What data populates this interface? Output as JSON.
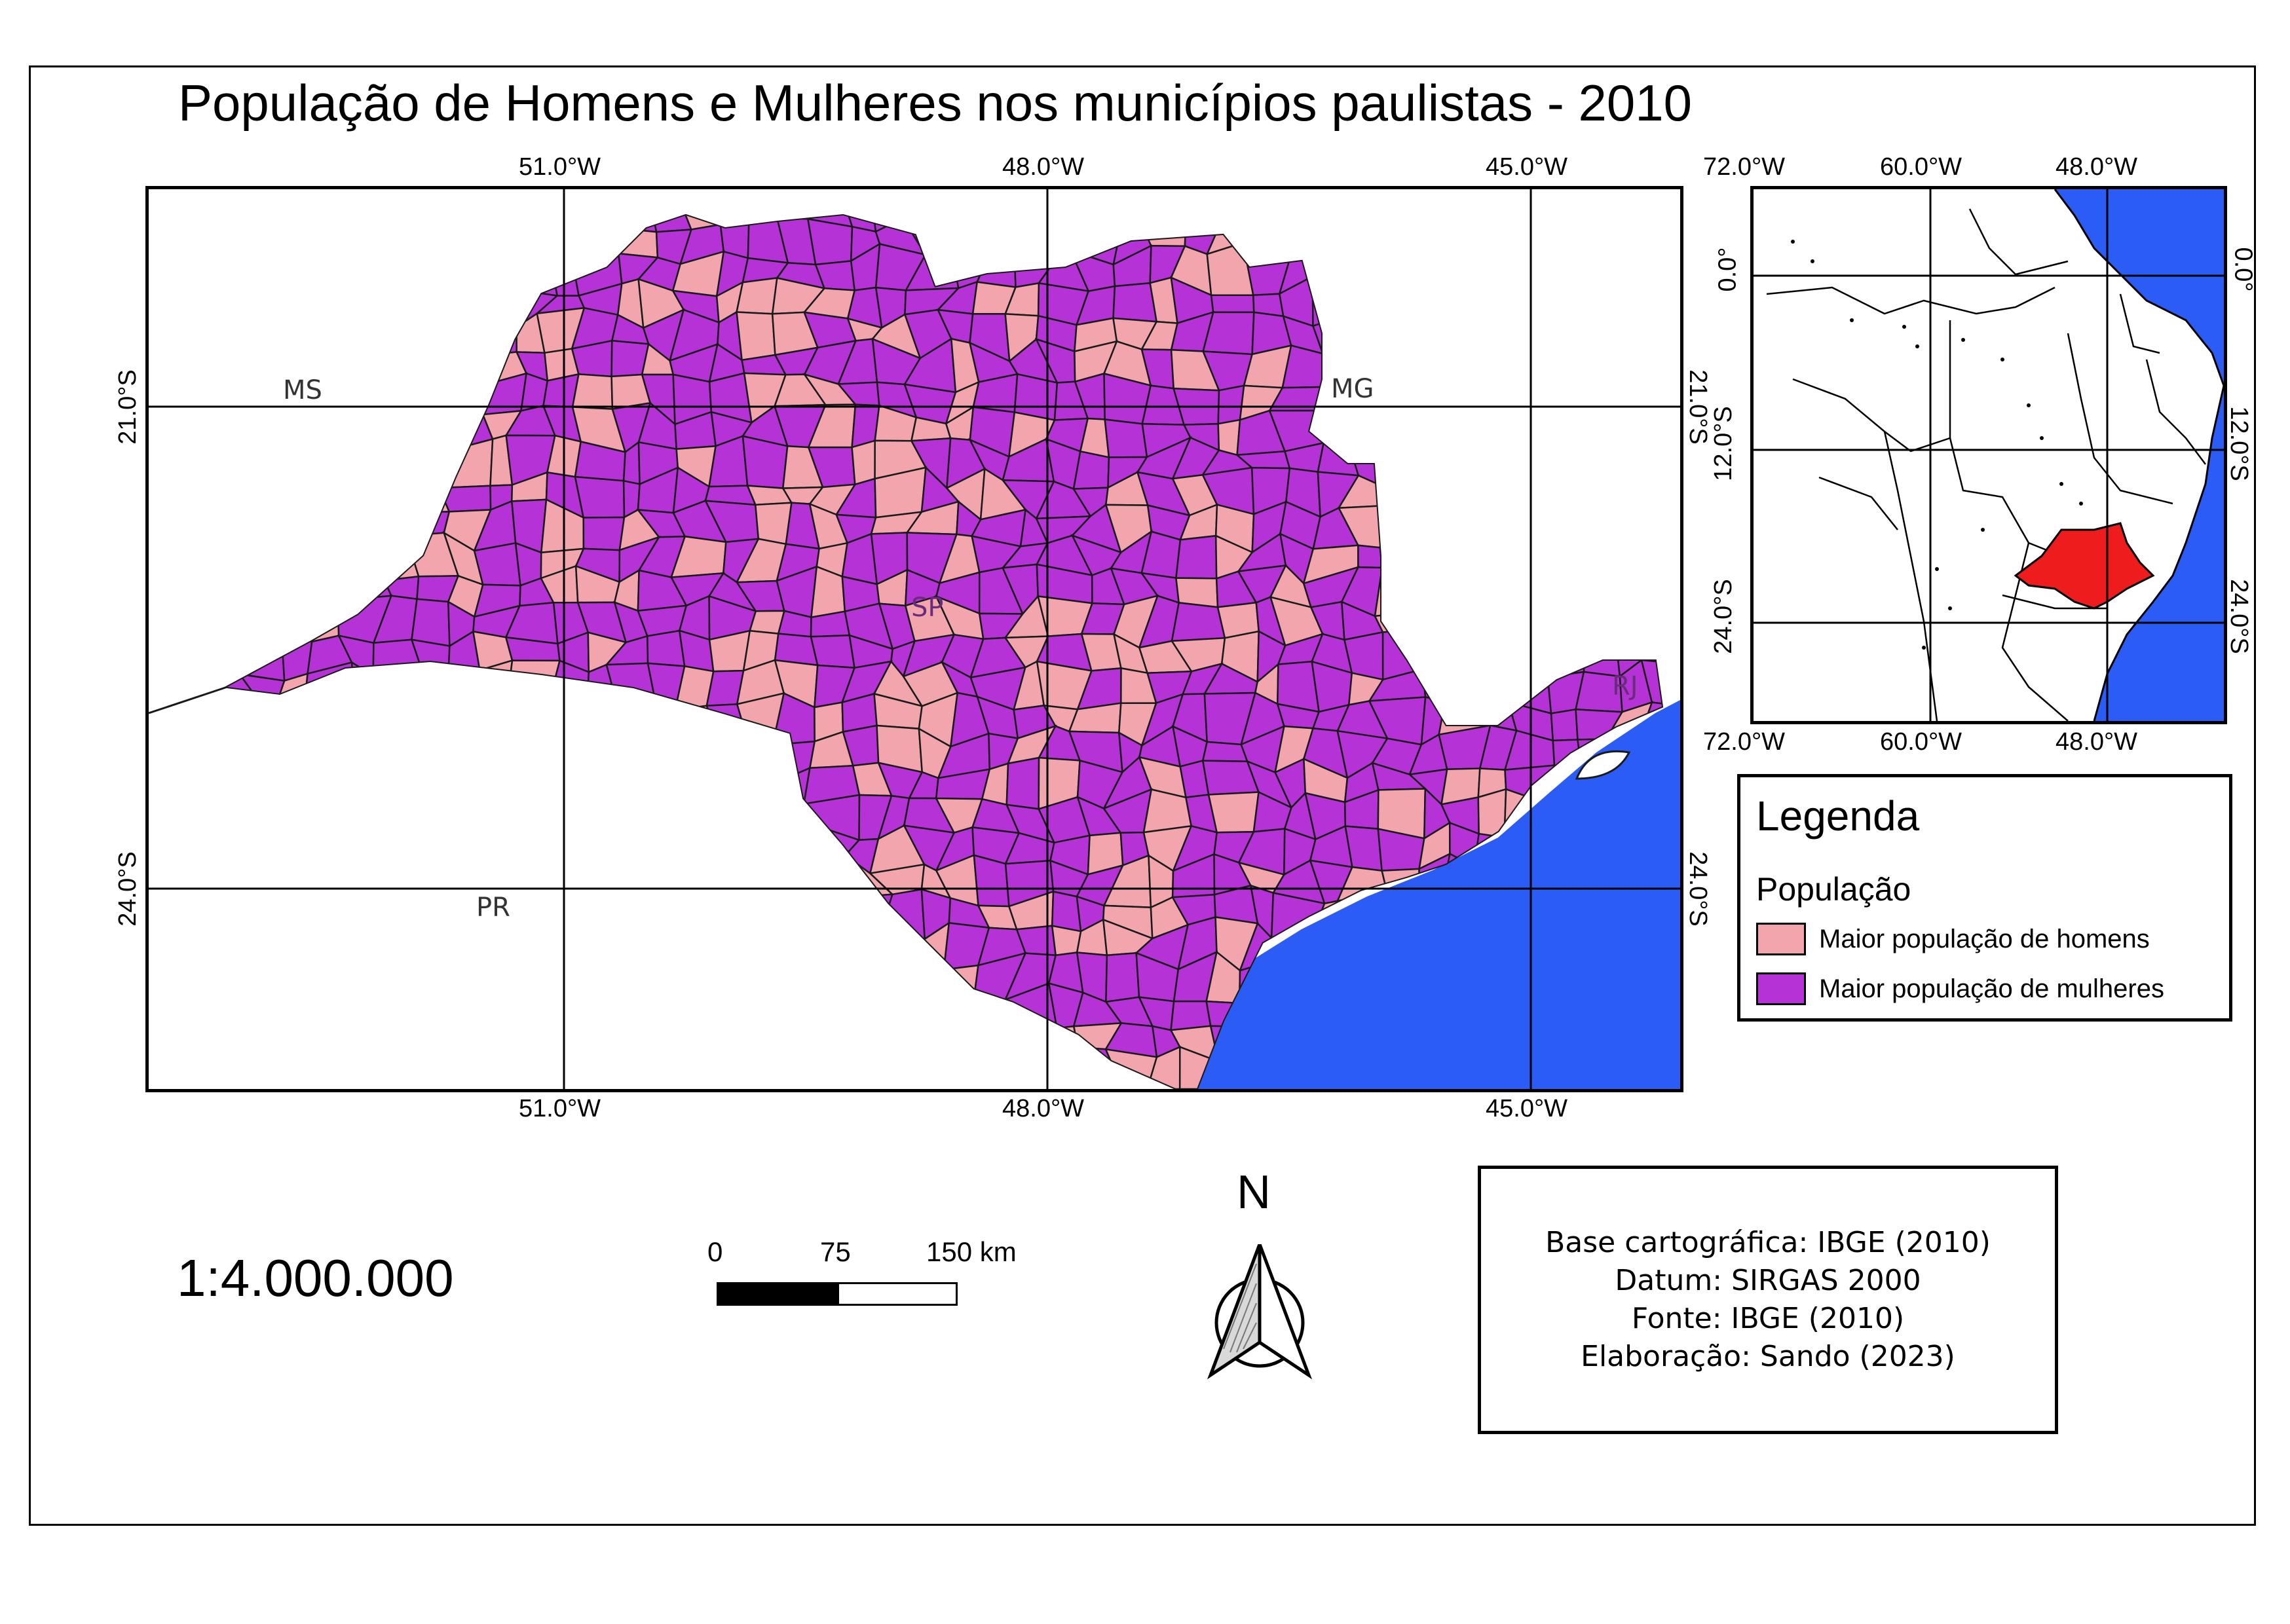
{
  "title": "População de Homens e Mulheres nos municípios paulistas - 2010",
  "colors": {
    "men_majority": "#f2a5ad",
    "women_majority": "#b533d6",
    "ocean": "#2b5cf5",
    "highlight_state": "#ee1c1c",
    "boundary": "#1a1a1a"
  },
  "main_map": {
    "top_lon_labels": [
      "51.0°W",
      "48.0°W",
      "45.0°W"
    ],
    "bottom_lon_labels": [
      "51.0°W",
      "48.0°W",
      "45.0°W"
    ],
    "left_lat_labels": [
      "21.0°S",
      "24.0°S"
    ],
    "right_lat_labels": [
      "21.0°S",
      "24.0°S"
    ],
    "state_labels": [
      "MS",
      "MG",
      "PR",
      "SP",
      "RJ"
    ]
  },
  "inset_map": {
    "top_lon_labels": [
      "72.0°W",
      "60.0°W",
      "48.0°W"
    ],
    "bottom_lon_labels": [
      "72.0°W",
      "60.0°W",
      "48.0°W"
    ],
    "left_lat_labels": [
      "0.0°",
      "12.0°S",
      "24.0°S"
    ],
    "right_lat_labels": [
      "0.0°",
      "12.0°S",
      "24.0°S"
    ]
  },
  "legend": {
    "title": "Legenda",
    "subtitle": "População",
    "items": [
      {
        "label": "Maior população de homens"
      },
      {
        "label": "Maior população de mulheres"
      }
    ]
  },
  "scale": {
    "ratio": "1:4.000.000",
    "ticks": [
      "0",
      "75",
      "150 km"
    ]
  },
  "north_arrow": {
    "letter": "N",
    "icon": "north-arrow-icon"
  },
  "credits": [
    "Base cartográfica: IBGE (2010)",
    "Datum: SIRGAS 2000",
    "Fonte: IBGE (2010)",
    "Elaboração: Sando (2023)"
  ]
}
